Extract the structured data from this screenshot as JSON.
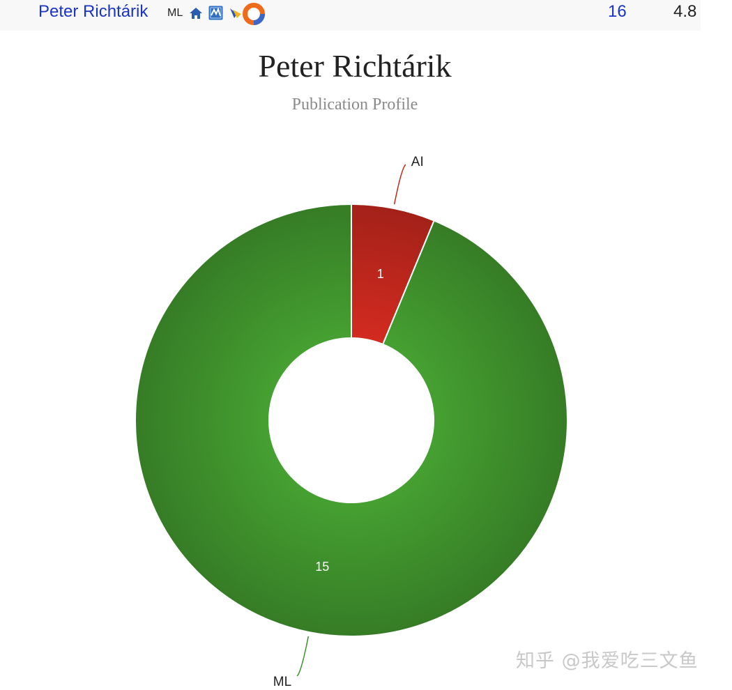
{
  "header": {
    "author_name": "Peter Richtárik",
    "area_tag": "ML",
    "icons": [
      "home-icon",
      "dblp-icon",
      "scholar-icon",
      "orcid-icon"
    ],
    "publication_count": "16",
    "score": "4.8",
    "link_color": "#1a33c9"
  },
  "chart_data": {
    "type": "pie",
    "title": "Peter Richtárik",
    "subtitle": "Publication Profile",
    "donut": true,
    "slices": [
      {
        "label": "AI",
        "value": 1,
        "color": "#c0271d"
      },
      {
        "label": "ML",
        "value": 15,
        "color": "#3f922d"
      }
    ],
    "data_labels": true,
    "legend": "none"
  },
  "watermark": "知乎 @我爱吃三文鱼"
}
